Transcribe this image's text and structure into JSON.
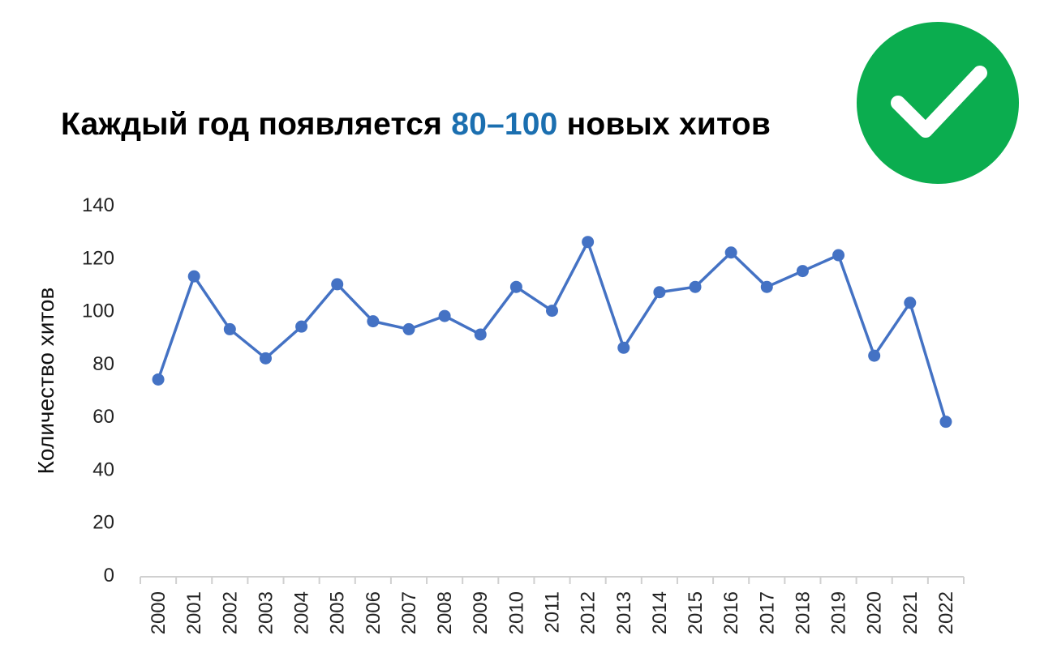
{
  "title": {
    "before": "Каждый год появляется ",
    "highlight": "80–100",
    "after": " новых хитов"
  },
  "colors": {
    "highlight": "#1b6fb0",
    "series": "#4472c4",
    "badge": "#0bad4f",
    "check": "#ffffff"
  },
  "badge": {
    "icon": "checkmark-icon"
  },
  "chart_data": {
    "type": "line",
    "title": "Каждый год появляется 80–100 новых хитов",
    "xlabel": "",
    "ylabel": "Количество хитов",
    "ylim": [
      0,
      140
    ],
    "yticks": [
      0,
      20,
      40,
      60,
      80,
      100,
      120,
      140
    ],
    "grid": false,
    "legend": "none",
    "categories": [
      "2000",
      "2001",
      "2002",
      "2003",
      "2004",
      "2005",
      "2006",
      "2007",
      "2008",
      "2009",
      "2010",
      "2011",
      "2012",
      "2013",
      "2014",
      "2015",
      "2016",
      "2017",
      "2018",
      "2019",
      "2020",
      "2021",
      "2022"
    ],
    "series": [
      {
        "values": [
          74,
          113,
          93,
          82,
          94,
          110,
          96,
          93,
          98,
          91,
          109,
          100,
          126,
          86,
          107,
          109,
          122,
          109,
          115,
          121,
          83,
          103,
          58
        ]
      }
    ]
  }
}
